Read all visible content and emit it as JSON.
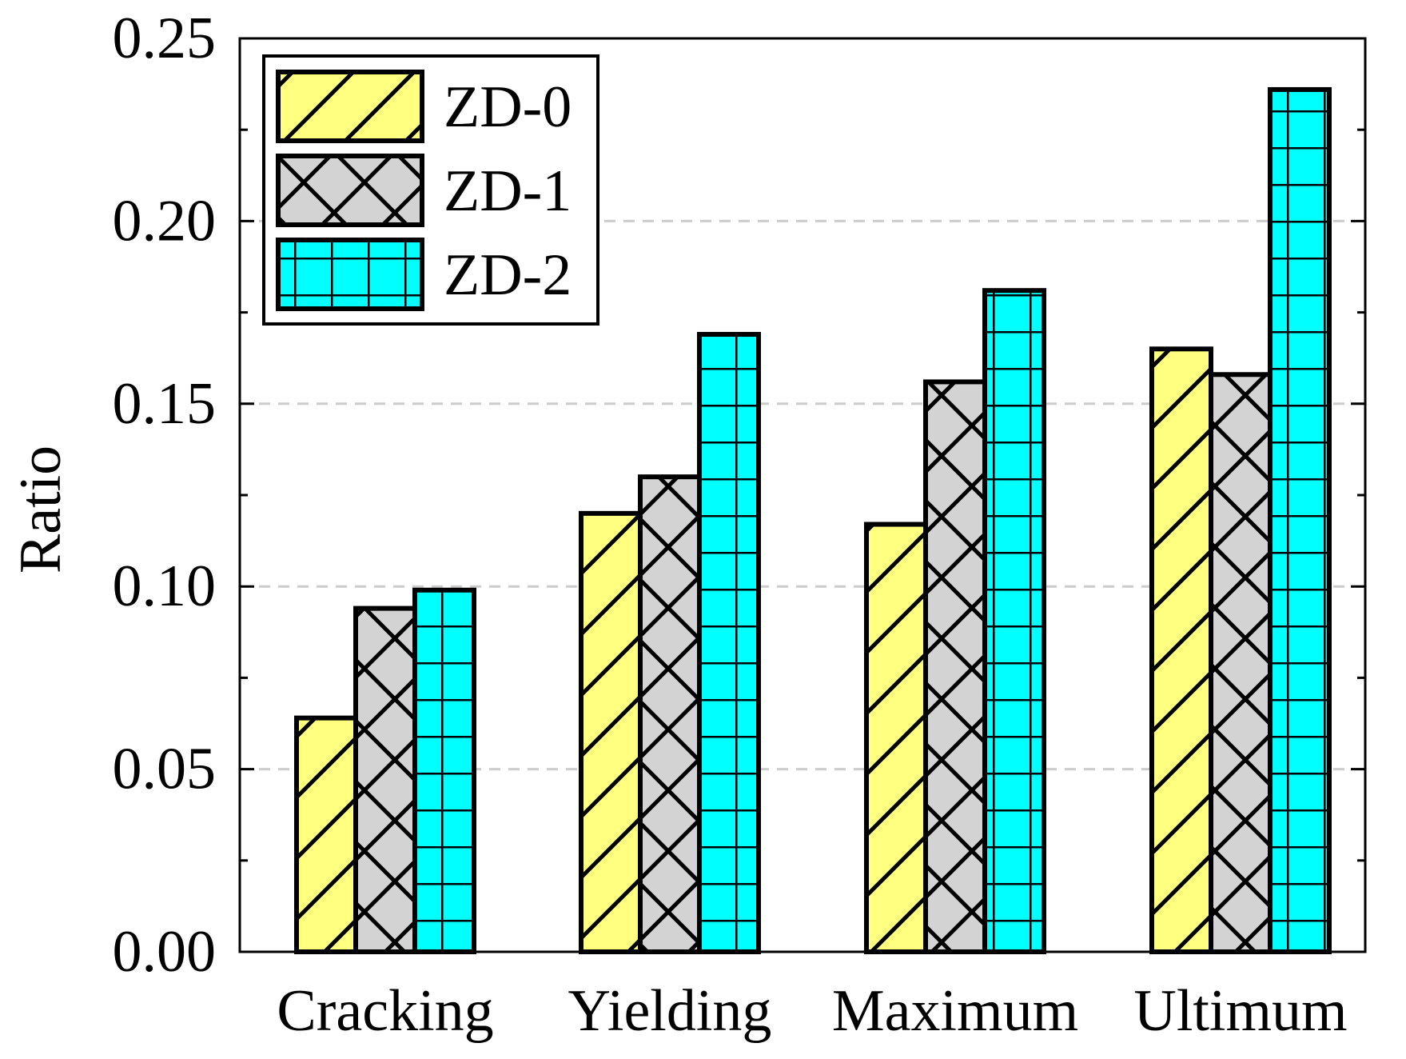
{
  "chart_data": {
    "type": "bar",
    "title": "",
    "xlabel": "",
    "ylabel": "Ratio",
    "ylim": [
      0,
      0.25
    ],
    "yticks": [
      "0.00",
      "0.05",
      "0.10",
      "0.15",
      "0.20",
      "0.25"
    ],
    "ytick_values": [
      0,
      0.05,
      0.1,
      0.15,
      0.2,
      0.25
    ],
    "grid": "dashed horizontal at major ticks",
    "legend_position": "top-left",
    "categories": [
      "Cracking",
      "Yielding",
      "Maximum",
      "Ultimum"
    ],
    "series": [
      {
        "name": "ZD-0",
        "values": [
          0.064,
          0.12,
          0.117,
          0.165
        ],
        "color": "#FFFF80",
        "pattern": "diagonal-hatch"
      },
      {
        "name": "ZD-1",
        "values": [
          0.094,
          0.13,
          0.156,
          0.158
        ],
        "color": "#D3D3D3",
        "pattern": "cross-hatch"
      },
      {
        "name": "ZD-2",
        "values": [
          0.099,
          0.169,
          0.181,
          0.236
        ],
        "color": "#00FFFF",
        "pattern": "grid"
      }
    ]
  }
}
